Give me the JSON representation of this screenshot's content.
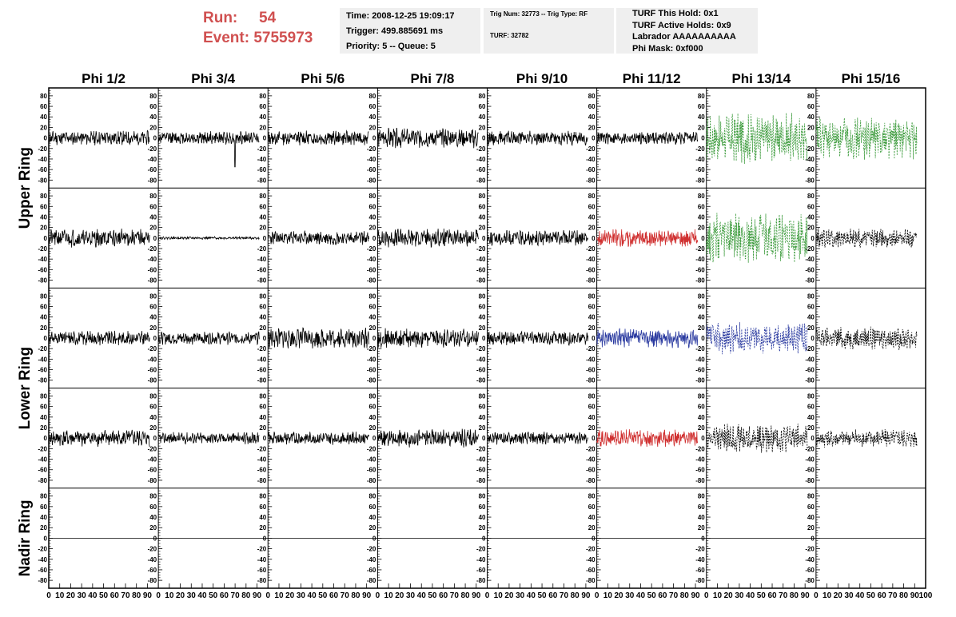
{
  "header": {
    "run_label": "Run:",
    "run_value": "54",
    "event_label": "Event:",
    "event_value": "5755973",
    "time": "Time: 2008-12-25 19:09:17",
    "trigger": "Trigger: 499.885691 ms",
    "priority": "Priority: 5 -- Queue: 5",
    "trig_num": "Trig Num: 32773 -- Trig Type: RF",
    "turf": "TURF: 32782",
    "turf_hold": "TURF This Hold: 0x1",
    "turf_active": "TURF Active Holds: 0x9",
    "labrador": "Labrador AAAAAAAAAA",
    "phi_mask": "Phi Mask: 0xf000"
  },
  "chart_data": {
    "type": "line",
    "columns": [
      "Phi 1/2",
      "Phi 3/4",
      "Phi 5/6",
      "Phi 7/8",
      "Phi 9/10",
      "Phi 11/12",
      "Phi 13/14",
      "Phi 15/16"
    ],
    "rows": [
      "Upper Ring",
      "Lower Ring",
      "Nadir Ring"
    ],
    "ylim": [
      -95,
      95
    ],
    "xlim": [
      0,
      100
    ],
    "y_ticks": [
      80,
      60,
      40,
      20,
      0,
      -20,
      -40,
      -60,
      -80
    ],
    "x_ticks": [
      0,
      10,
      20,
      30,
      40,
      50,
      60,
      70,
      80,
      90,
      100
    ],
    "colors": {
      "black": "#000000",
      "green": "#3a9a3a",
      "red": "#d03030",
      "blue": "#2a3aa0"
    },
    "panels": [
      {
        "band": 0,
        "cells": [
          {
            "color": "black",
            "dashed": false,
            "amp": 11,
            "seed": 11
          },
          {
            "color": "black",
            "dashed": false,
            "amp": 10,
            "seed": 12,
            "spike": {
              "at": 70,
              "value": -55
            }
          },
          {
            "color": "black",
            "dashed": false,
            "amp": 11,
            "seed": 13
          },
          {
            "color": "black",
            "dashed": false,
            "amp": 15,
            "seed": 14
          },
          {
            "color": "black",
            "dashed": false,
            "amp": 11,
            "seed": 15
          },
          {
            "color": "black",
            "dashed": false,
            "amp": 10,
            "seed": 16
          },
          {
            "color": "green",
            "dashed": true,
            "amp": 38,
            "seed": 17
          },
          {
            "color": "green",
            "dashed": true,
            "amp": 32,
            "seed": 18
          }
        ]
      },
      {
        "band": 1,
        "cells": [
          {
            "color": "black",
            "dashed": false,
            "amp": 14,
            "seed": 21
          },
          {
            "color": "black",
            "dashed": false,
            "amp": 2,
            "seed": 22
          },
          {
            "color": "black",
            "dashed": false,
            "amp": 11,
            "seed": 23
          },
          {
            "color": "black",
            "dashed": false,
            "amp": 15,
            "seed": 24
          },
          {
            "color": "black",
            "dashed": false,
            "amp": 12,
            "seed": 25
          },
          {
            "color": "red",
            "dashed": false,
            "amp": 14,
            "seed": 26
          },
          {
            "color": "green",
            "dashed": true,
            "amp": 38,
            "seed": 27
          },
          {
            "color": "black",
            "dashed": true,
            "amp": 15,
            "seed": 28
          }
        ]
      },
      {
        "band": 2,
        "cells": [
          {
            "color": "black",
            "dashed": false,
            "amp": 11,
            "seed": 31
          },
          {
            "color": "black",
            "dashed": false,
            "amp": 10,
            "seed": 32
          },
          {
            "color": "black",
            "dashed": false,
            "amp": 16,
            "seed": 33
          },
          {
            "color": "black",
            "dashed": false,
            "amp": 15,
            "seed": 34
          },
          {
            "color": "black",
            "dashed": false,
            "amp": 11,
            "seed": 35
          },
          {
            "color": "blue",
            "dashed": false,
            "amp": 15,
            "seed": 36
          },
          {
            "color": "blue",
            "dashed": true,
            "amp": 24,
            "seed": 37
          },
          {
            "color": "black",
            "dashed": true,
            "amp": 17,
            "seed": 38
          }
        ]
      },
      {
        "band": 3,
        "cells": [
          {
            "color": "black",
            "dashed": false,
            "amp": 13,
            "seed": 41
          },
          {
            "color": "black",
            "dashed": false,
            "amp": 9,
            "seed": 42
          },
          {
            "color": "black",
            "dashed": false,
            "amp": 10,
            "seed": 43
          },
          {
            "color": "black",
            "dashed": false,
            "amp": 14,
            "seed": 44
          },
          {
            "color": "black",
            "dashed": false,
            "amp": 10,
            "seed": 45
          },
          {
            "color": "red",
            "dashed": false,
            "amp": 14,
            "seed": 46
          },
          {
            "color": "black",
            "dashed": true,
            "amp": 22,
            "seed": 47
          },
          {
            "color": "black",
            "dashed": true,
            "amp": 14,
            "seed": 48
          }
        ]
      },
      {
        "band": 4,
        "cells": [
          {
            "color": "black",
            "dashed": false,
            "amp": 0,
            "seed": 0
          },
          {
            "color": "black",
            "dashed": false,
            "amp": 0,
            "seed": 0
          },
          {
            "color": "black",
            "dashed": false,
            "amp": 0,
            "seed": 0
          },
          {
            "color": "black",
            "dashed": false,
            "amp": 0,
            "seed": 0
          },
          {
            "color": "black",
            "dashed": false,
            "amp": 0,
            "seed": 0
          },
          {
            "color": "black",
            "dashed": false,
            "amp": 0,
            "seed": 0
          },
          {
            "color": "black",
            "dashed": false,
            "amp": 0,
            "seed": 0
          },
          {
            "color": "black",
            "dashed": false,
            "amp": 0,
            "seed": 0
          }
        ]
      }
    ]
  }
}
